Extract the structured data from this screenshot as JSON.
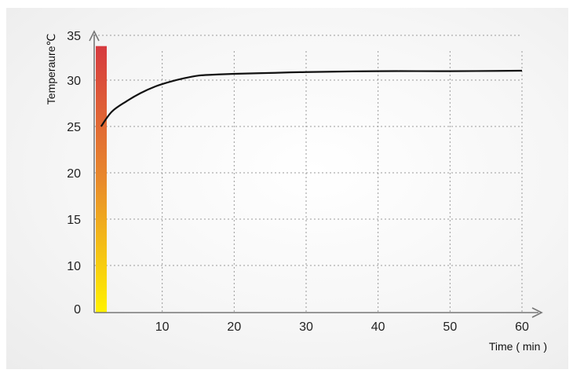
{
  "chart_data": {
    "type": "line",
    "xlabel": "Time ( min )",
    "ylabel": "Temperaure℃",
    "x_ticks": [
      10,
      20,
      30,
      40,
      50,
      60
    ],
    "y_ticks": [
      0,
      10,
      15,
      20,
      25,
      30,
      35
    ],
    "xlim": [
      0,
      60
    ],
    "grid": true,
    "colors": {
      "line": "#111111",
      "grid": "#9a9a9a",
      "axis": "#777777",
      "bar_top": "#d63a3f",
      "bar_mid": "#e8892c",
      "bar_bottom": "#fff200"
    },
    "series": [
      {
        "x": [
          1.5,
          3,
          5,
          7,
          9,
          11,
          13,
          15,
          17,
          20,
          25,
          30,
          40,
          50,
          60
        ],
        "y": [
          25.0,
          26.6,
          27.7,
          28.6,
          29.3,
          29.8,
          30.2,
          30.5,
          30.6,
          30.7,
          30.8,
          30.9,
          31.0,
          31.0,
          31.05
        ]
      }
    ],
    "thermometer_bar": {
      "top_value": 33.8
    }
  }
}
